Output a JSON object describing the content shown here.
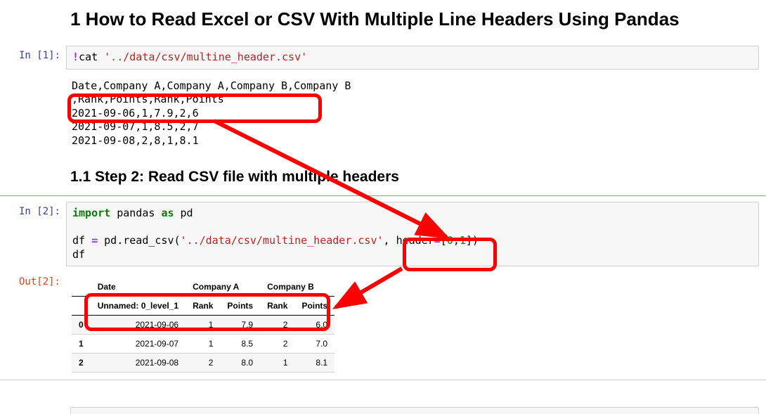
{
  "annotations": {
    "box_color": "#fb0000"
  },
  "headings": {
    "h1": "1  How to Read Excel or CSV With Multiple Line Headers Using Pandas",
    "h2": "1.1  Step 2: Read CSV file with multiple headers"
  },
  "cell1": {
    "prompt": "In [1]:",
    "code": {
      "bang": "!",
      "cmd": "cat ",
      "path": "'../data/csv/multine_header.csv'"
    },
    "output_lines": [
      "Date,Company A,Company A,Company B,Company B",
      ",Rank,Points,Rank,Points",
      "2021-09-06,1,7.9,2,6",
      "2021-09-07,1,8.5,2,7",
      "2021-09-08,2,8,1,8.1"
    ]
  },
  "cell2": {
    "prompt": "In [2]:",
    "out_prompt": "Out[2]:",
    "code": {
      "import_kw": "import",
      "pandas": " pandas ",
      "as_kw": "as",
      "pd": " pd",
      "blank": "",
      "assign": "df ",
      "eq": "=",
      "call": " pd.read_csv(",
      "path": "'../data/csv/multine_header.csv'",
      "comma": ", header",
      "eq2": "=",
      "bracket_open": "[",
      "zero": "0",
      "comma2": ",",
      "one": "1",
      "bracket_close": "])",
      "df": "df"
    },
    "table": {
      "header_row1": [
        "",
        "Date",
        "Company A",
        "",
        "Company B",
        ""
      ],
      "header_row2": [
        "",
        "Unnamed: 0_level_1",
        "Rank",
        "Points",
        "Rank",
        "Points"
      ],
      "rows": [
        [
          "0",
          "2021-09-06",
          "1",
          "7.9",
          "2",
          "6.0"
        ],
        [
          "1",
          "2021-09-07",
          "1",
          "8.5",
          "2",
          "7.0"
        ],
        [
          "2",
          "2021-09-08",
          "2",
          "8.0",
          "1",
          "8.1"
        ]
      ]
    }
  }
}
